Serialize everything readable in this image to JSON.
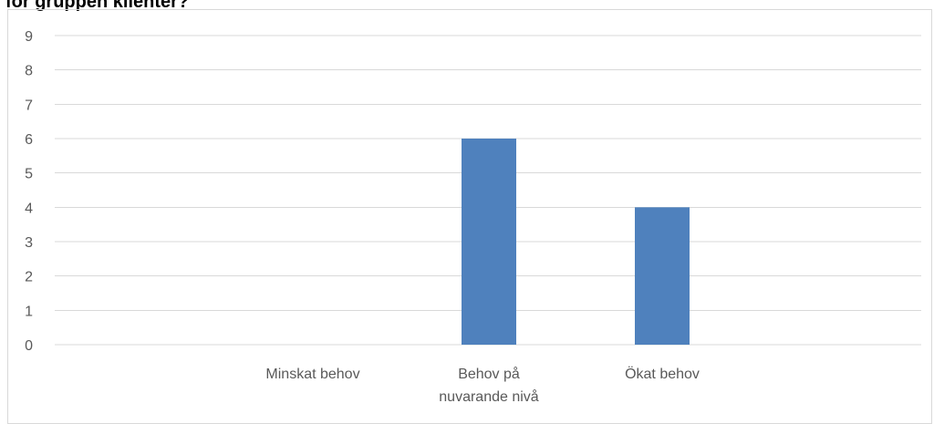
{
  "title": "för gruppen klienter?",
  "chart_data": {
    "type": "bar",
    "categories": [
      [
        "Minskat behov"
      ],
      [
        "Behov på",
        "nuvarande nivå"
      ],
      [
        "Ökat behov"
      ]
    ],
    "values": [
      0,
      6,
      4
    ],
    "ylim": [
      0,
      9
    ],
    "yticks": [
      0,
      1,
      2,
      3,
      4,
      5,
      6,
      7,
      8,
      9
    ],
    "grid": true,
    "legend": "none",
    "colors": {
      "bar": "#4f81bd",
      "grid": "#d9d9d9",
      "axis": "#d9d9d9",
      "text": "#595959"
    }
  }
}
